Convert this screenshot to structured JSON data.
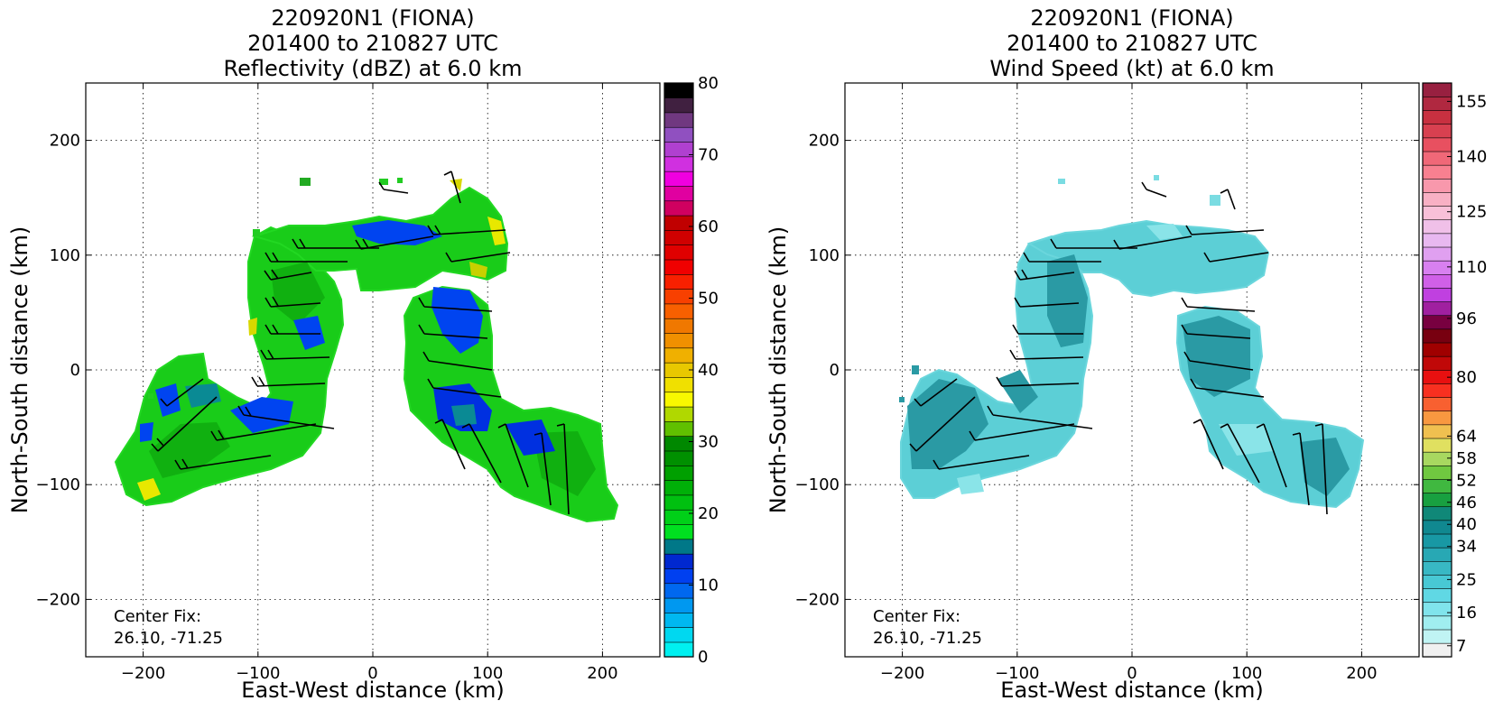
{
  "chart_data": [
    {
      "type": "heatmap",
      "title_lines": [
        "220920N1 (FIONA)",
        "201400 to 210827 UTC",
        "Reflectivity (dBZ) at 6.0 km"
      ],
      "xlabel": "East-West distance (km)",
      "ylabel": "North-South distance (km)",
      "xlim": [
        -250,
        250
      ],
      "ylim": [
        -250,
        250
      ],
      "xticks": [
        -200,
        -100,
        0,
        100,
        200
      ],
      "yticks": [
        -200,
        -100,
        0,
        100,
        200
      ],
      "grid": true,
      "annotation_lines": [
        "Center Fix:",
        "26.10, -71.25"
      ],
      "colorbar": {
        "min": 0,
        "max": 80,
        "tick_values": [
          0,
          10,
          20,
          30,
          40,
          50,
          60,
          70,
          80
        ],
        "tick_labels": [
          "0",
          "10",
          "20",
          "30",
          "40",
          "50",
          "60",
          "70",
          "80"
        ],
        "colors": [
          "#00f0f0",
          "#00d8f0",
          "#00b8f0",
          "#0098f0",
          "#0068f0",
          "#0040f0",
          "#0028d0",
          "#007888",
          "#00e020",
          "#00d018",
          "#00c010",
          "#00b008",
          "#00a000",
          "#009000",
          "#008800",
          "#60c000",
          "#b0d800",
          "#f8f800",
          "#f0e000",
          "#e8c800",
          "#f0b000",
          "#f09000",
          "#f07800",
          "#f86000",
          "#f84000",
          "#f82000",
          "#f00000",
          "#e00000",
          "#d00000",
          "#c00000",
          "#d00060",
          "#e000a0",
          "#f000e0",
          "#d030e0",
          "#b040d0",
          "#9050c0",
          "#703880",
          "#402040",
          "#000000"
        ]
      }
    },
    {
      "type": "heatmap",
      "title_lines": [
        "220920N1 (FIONA)",
        "201400 to 210827 UTC",
        "Wind Speed (kt) at 6.0 km"
      ],
      "xlabel": "East-West distance (km)",
      "ylabel": "North-South distance (km)",
      "xlim": [
        -250,
        250
      ],
      "ylim": [
        -250,
        250
      ],
      "xticks": [
        -200,
        -100,
        0,
        100,
        200
      ],
      "yticks": [
        -200,
        -100,
        0,
        100,
        200
      ],
      "grid": true,
      "annotation_lines": [
        "Center Fix:",
        "26.10, -71.25"
      ],
      "colorbar": {
        "min": 4,
        "max": 160,
        "tick_values": [
          7,
          16,
          25,
          34,
          40,
          46,
          52,
          58,
          64,
          80,
          96,
          110,
          125,
          140,
          155
        ],
        "tick_labels": [
          "7",
          "16",
          "25",
          "34",
          "40",
          "46",
          "52",
          "58",
          "64",
          "80",
          "96",
          "110",
          "125",
          "140",
          "155"
        ],
        "colors": [
          "#f0f0f0",
          "#c0f4f4",
          "#a0eef0",
          "#80e4ec",
          "#60d8e4",
          "#48c8d4",
          "#38b8c4",
          "#28a8b4",
          "#1898a4",
          "#108890",
          "#108878",
          "#18a040",
          "#40b840",
          "#70c840",
          "#a8d860",
          "#e0e060",
          "#f0c050",
          "#f89840",
          "#f86030",
          "#f83020",
          "#e81010",
          "#c00808",
          "#a00000",
          "#780010",
          "#780040",
          "#a020a0",
          "#c040e0",
          "#d060e8",
          "#d880f0",
          "#e0a0f0",
          "#e8b8f0",
          "#f0c0e8",
          "#f8c0d8",
          "#f8b0c4",
          "#f898ac",
          "#f88090",
          "#f06878",
          "#e85060",
          "#d84050",
          "#c83040",
          "#b02840",
          "#982040"
        ]
      }
    }
  ]
}
